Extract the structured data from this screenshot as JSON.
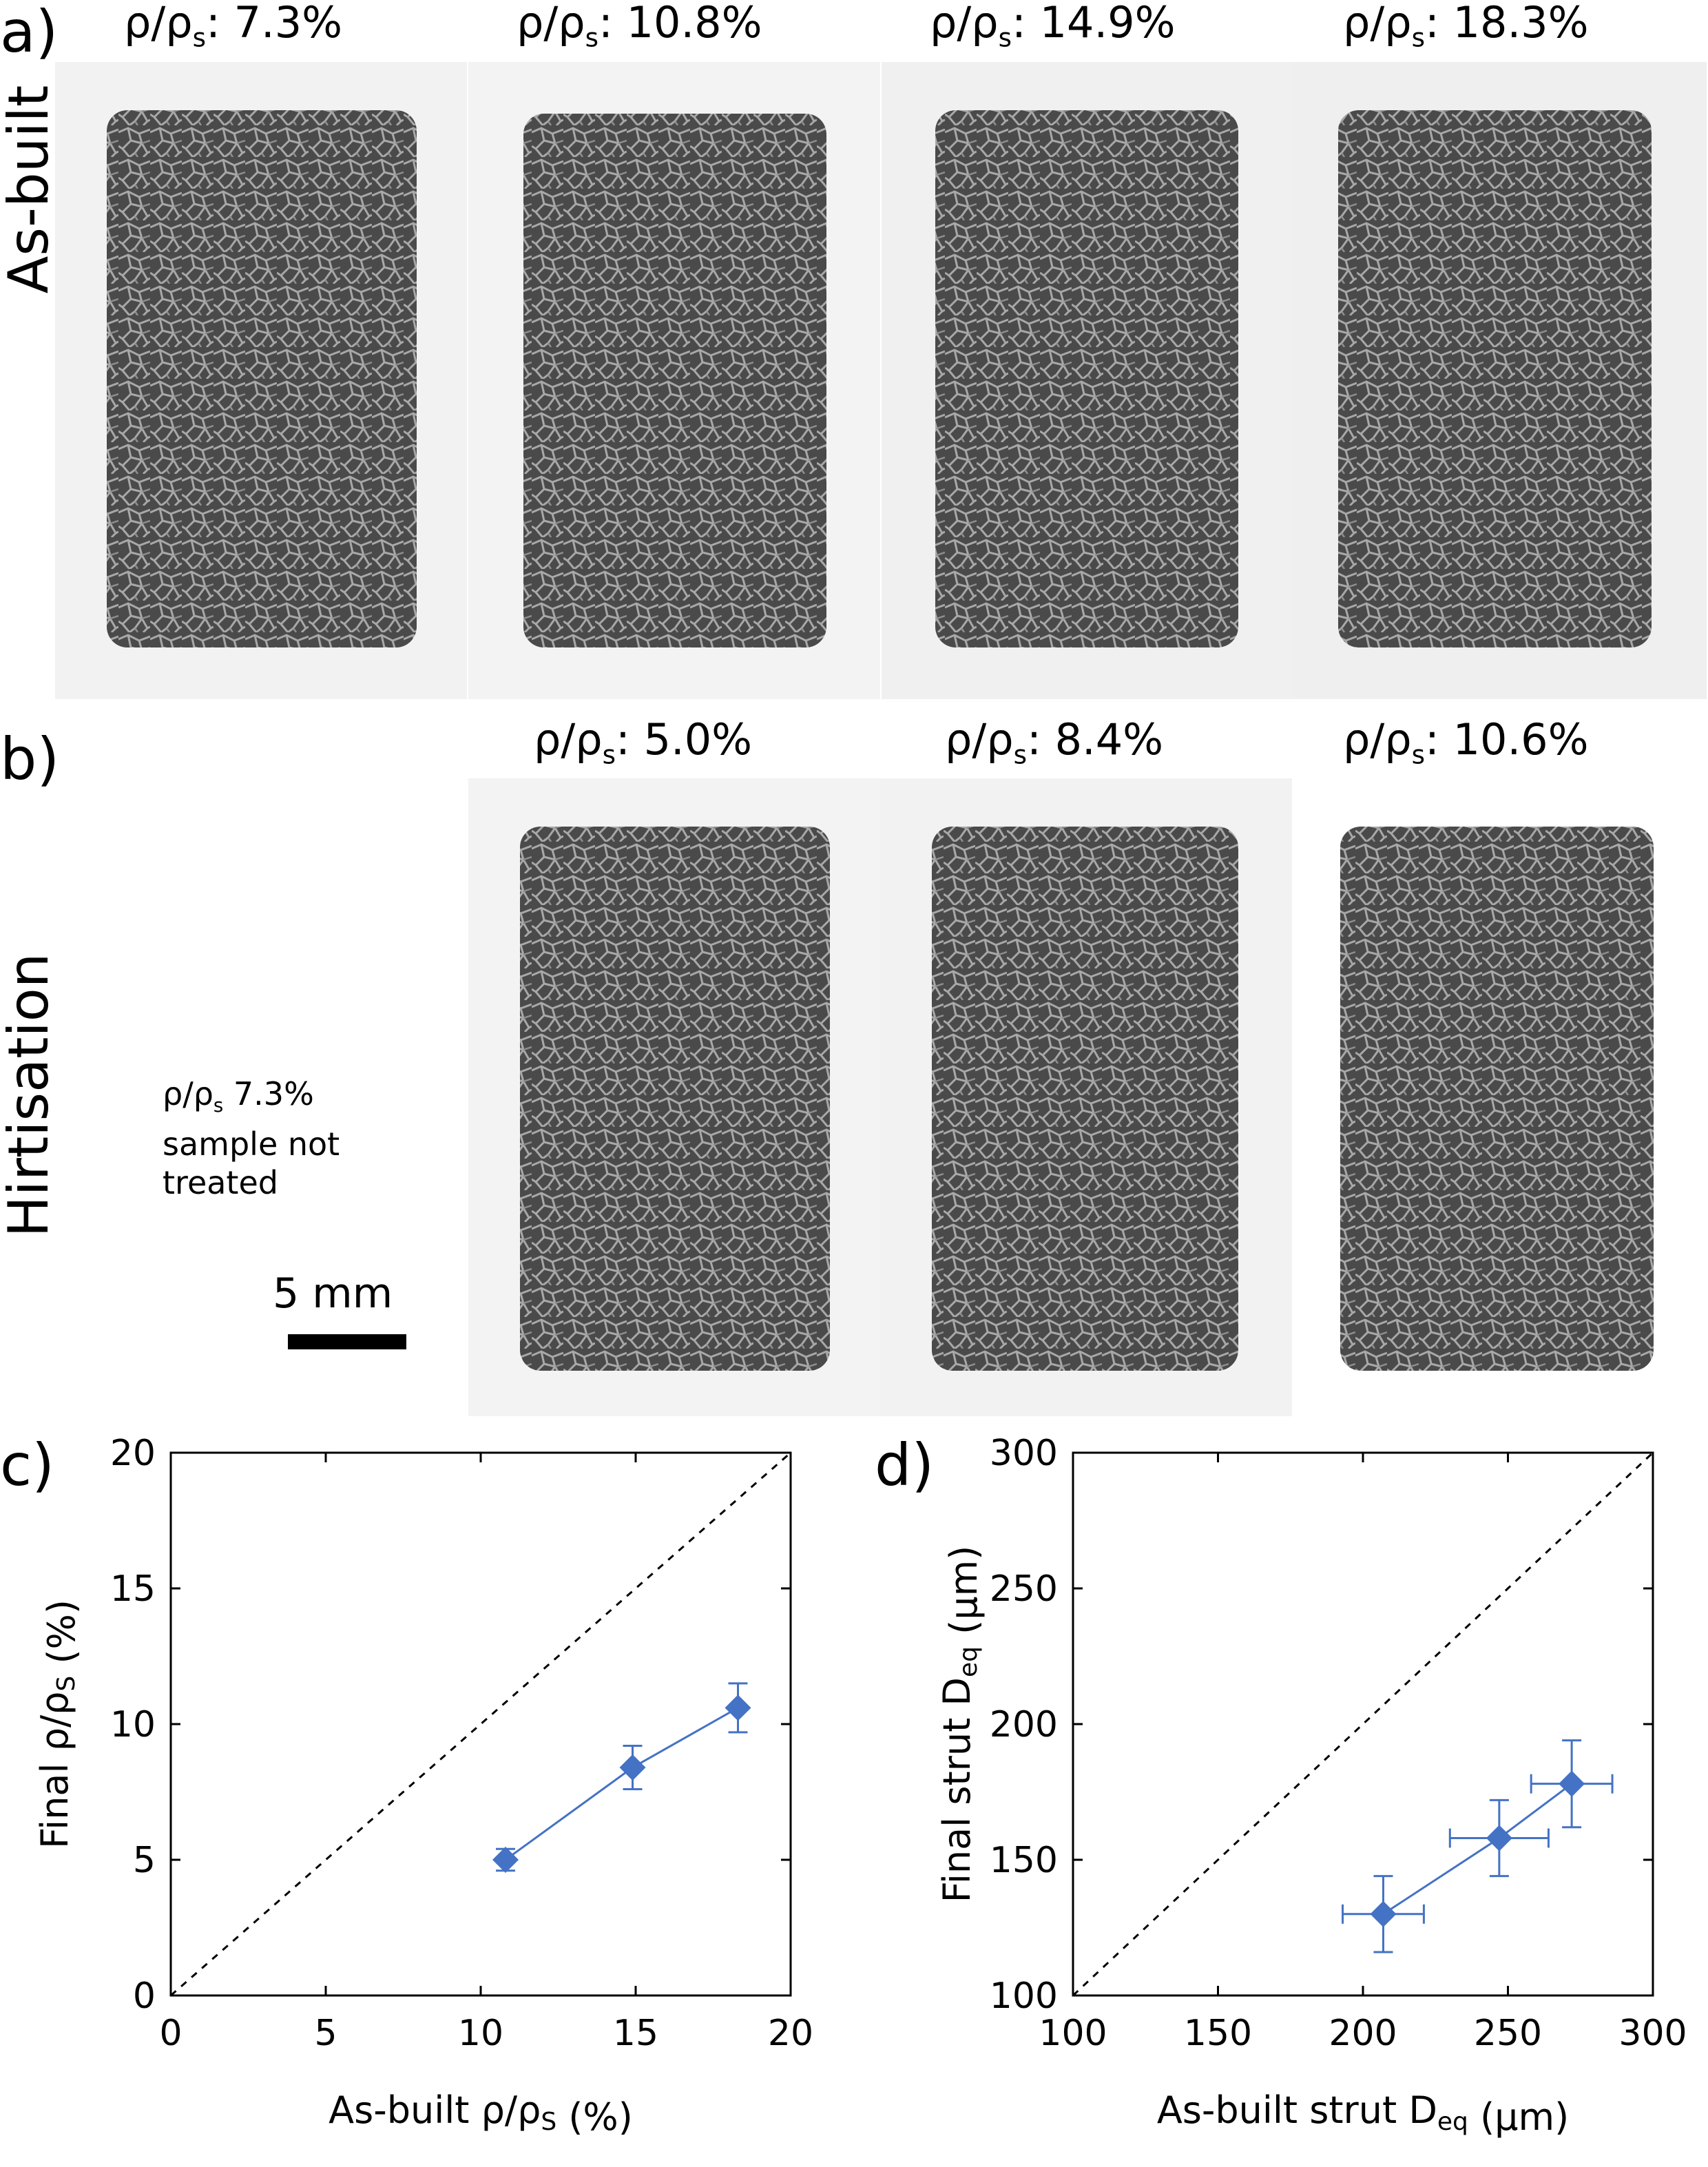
{
  "panel_a": {
    "label": "a)",
    "row_label": "As-built",
    "samples": [
      {
        "density_label": "ρ/ρs: 7.3%",
        "image": "foam-cylinder-as-built-7.3"
      },
      {
        "density_label": "ρ/ρs: 10.8%",
        "image": "foam-cylinder-as-built-10.8"
      },
      {
        "density_label": "ρ/ρs: 14.9%",
        "image": "foam-cylinder-as-built-14.9"
      },
      {
        "density_label": "ρ/ρs: 18.3%",
        "image": "foam-cylinder-as-built-18.3"
      }
    ]
  },
  "panel_b": {
    "label": "b)",
    "row_label": "Hirtisation",
    "note_lines": [
      "ρ/ρs 7.3%",
      "sample not",
      "treated"
    ],
    "scale_bar_label": "5 mm",
    "samples": [
      {
        "density_label": "ρ/ρs: 5.0%",
        "image": "foam-cylinder-hirtised-5.0"
      },
      {
        "density_label": "ρ/ρs: 8.4%",
        "image": "foam-cylinder-hirtised-8.4"
      },
      {
        "density_label": "ρ/ρs: 10.6%",
        "image": "foam-cylinder-hirtised-10.6"
      }
    ]
  },
  "colors": {
    "series": "#4472c4",
    "reference_line": "#000000",
    "photo_bg": "#f1f1f1",
    "foam": "#5a5a5a"
  },
  "chart_data": [
    {
      "panel_label": "c)",
      "type": "scatter",
      "title": "",
      "xlabel": "As-built ρ/ρS (%)",
      "ylabel": "Final ρ/ρS (%)",
      "xlim": [
        0,
        20
      ],
      "ylim": [
        0,
        20
      ],
      "xticks": [
        0,
        5,
        10,
        15,
        20
      ],
      "yticks": [
        0,
        5,
        10,
        15,
        20
      ],
      "reference_line": "y = x (dashed)",
      "series": [
        {
          "name": "Hirtisation",
          "marker": "diamond",
          "connected": true,
          "x": [
            10.8,
            14.9,
            18.3
          ],
          "y": [
            5.0,
            8.4,
            10.6
          ],
          "yerr": [
            0.4,
            0.8,
            0.9
          ],
          "xerr": [
            0,
            0,
            0
          ]
        }
      ]
    },
    {
      "panel_label": "d)",
      "type": "scatter",
      "title": "",
      "xlabel": "As-built strut Deq (µm)",
      "ylabel": "Final strut Deq (µm)",
      "xlim": [
        100,
        300
      ],
      "ylim": [
        100,
        300
      ],
      "xticks": [
        100,
        150,
        200,
        250,
        300
      ],
      "yticks": [
        100,
        150,
        200,
        250,
        300
      ],
      "reference_line": "y = x (dashed)",
      "series": [
        {
          "name": "Hirtisation",
          "marker": "diamond",
          "connected": true,
          "x": [
            207,
            247,
            272
          ],
          "y": [
            130,
            158,
            178
          ],
          "xerr": [
            14,
            17,
            14
          ],
          "yerr": [
            14,
            14,
            16
          ]
        }
      ]
    }
  ]
}
